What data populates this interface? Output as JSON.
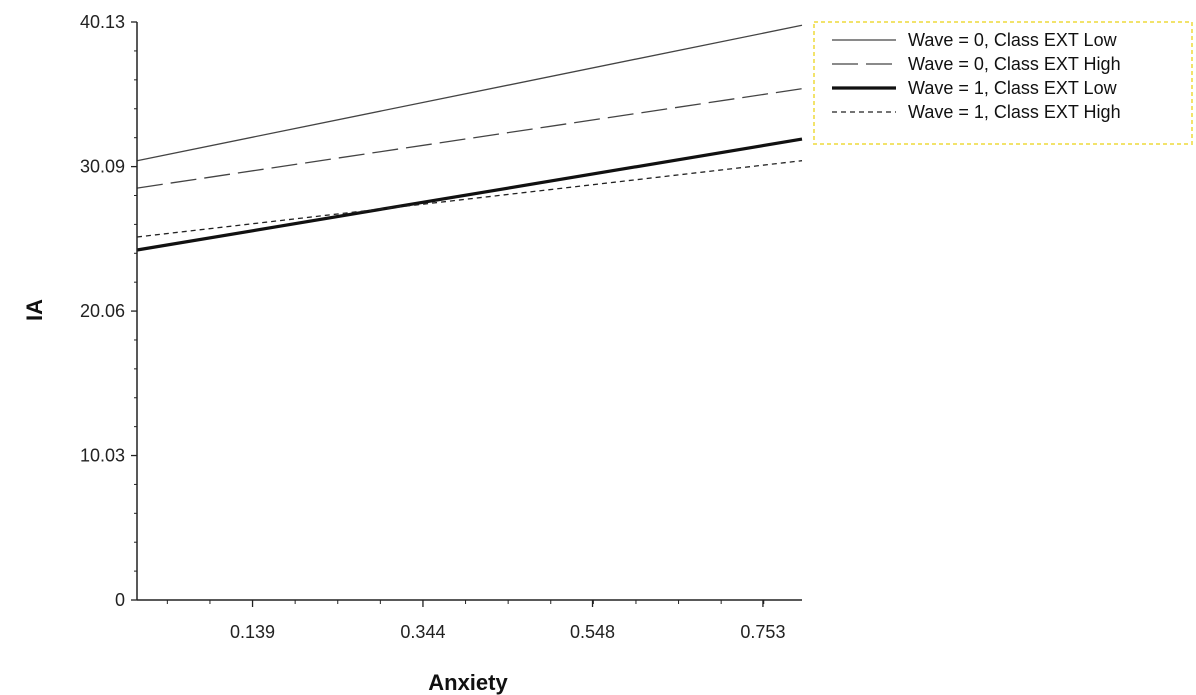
{
  "chart_data": {
    "type": "line",
    "title": "",
    "xlabel": "Anxiety",
    "ylabel": "IA",
    "xlim": [
      0.0,
      0.8
    ],
    "ylim": [
      0,
      40.13
    ],
    "x_ticks": [
      0.139,
      0.344,
      0.548,
      0.753
    ],
    "x_tick_labels": [
      "0.139",
      "0.344",
      "0.548",
      "0.753"
    ],
    "y_ticks": [
      0,
      10.03,
      20.06,
      30.09,
      40.13
    ],
    "y_tick_labels": [
      "0",
      "10.03",
      "20.06",
      "30.09",
      "40.13"
    ],
    "grid": false,
    "legend_position": "top-right",
    "series": [
      {
        "name": "Wave = 0, Class EXT Low",
        "x": [
          0.0,
          0.8
        ],
        "values": [
          30.5,
          39.9
        ],
        "style": "solid-thin",
        "color": "#444444"
      },
      {
        "name": "Wave = 0, Class EXT High",
        "x": [
          0.0,
          0.8
        ],
        "values": [
          28.6,
          35.5
        ],
        "style": "long-dash",
        "color": "#444444"
      },
      {
        "name": "Wave = 1, Class EXT Low",
        "x": [
          0.0,
          0.8
        ],
        "values": [
          24.3,
          32.0
        ],
        "style": "solid-thick",
        "color": "#111111"
      },
      {
        "name": "Wave = 1, Class EXT High",
        "x": [
          0.0,
          0.8
        ],
        "values": [
          25.2,
          30.5
        ],
        "style": "short-dash",
        "color": "#222222"
      }
    ]
  }
}
